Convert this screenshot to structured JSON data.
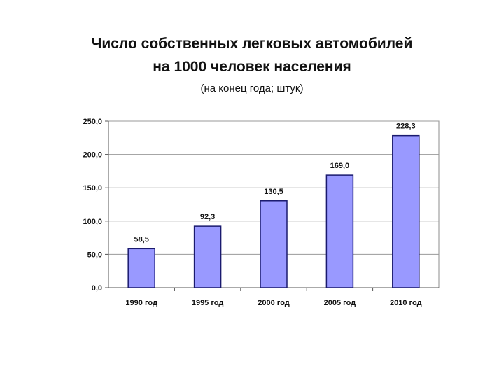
{
  "title_line1": "Число собственных легковых автомобилей",
  "title_line2": "на 1000 человек населения",
  "subtitle": "(на конец года; штук)",
  "chart_data": {
    "type": "bar",
    "categories": [
      "1990 год",
      "1995 год",
      "2000 год",
      "2005 год",
      "2010 год"
    ],
    "values": [
      58.5,
      92.3,
      130.5,
      169.0,
      228.3
    ],
    "value_labels": [
      "58,5",
      "92,3",
      "130,5",
      "169,0",
      "228,3"
    ],
    "ylim": [
      0,
      250
    ],
    "yticks": [
      0,
      50,
      100,
      150,
      200,
      250
    ],
    "ytick_labels": [
      "0,0",
      "50,0",
      "100,0",
      "150,0",
      "200,0",
      "250,0"
    ],
    "grid": true,
    "bar_color": "#9999ff",
    "bar_edge_color": "#1a1a6e"
  }
}
